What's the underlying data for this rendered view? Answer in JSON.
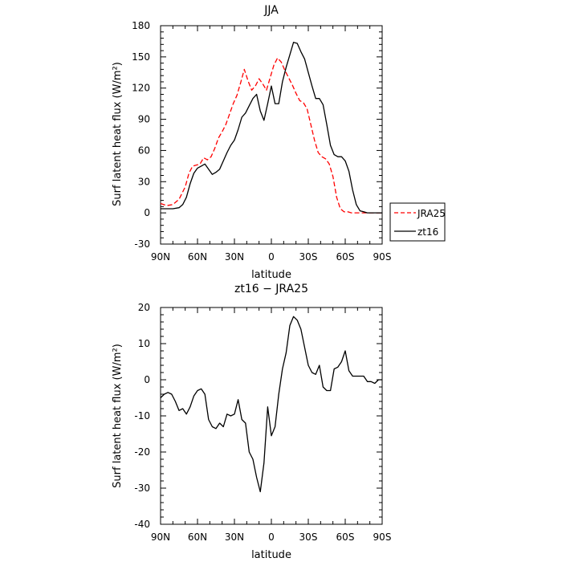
{
  "chart_data": [
    {
      "type": "line",
      "title": "JJA",
      "xlabel": "latitude",
      "ylabel": "Surf latent heat flux (W/m²)",
      "xlim": [
        90,
        -90
      ],
      "ylim": [
        -30,
        180
      ],
      "x_tick_values": [
        90,
        60,
        30,
        0,
        -30,
        -60,
        -90
      ],
      "x_tick_labels": [
        "90N",
        "60N",
        "30N",
        "0",
        "30S",
        "60S",
        "90S"
      ],
      "y_tick_values": [
        -30,
        0,
        30,
        60,
        90,
        120,
        150,
        180
      ],
      "y_tick_labels": [
        "-30",
        "0",
        "30",
        "60",
        "90",
        "120",
        "150",
        "180"
      ],
      "legend": "right",
      "series": [
        {
          "name": "JRA25",
          "color": "#ff0000",
          "dash": "dashed",
          "x": [
            90,
            85,
            80,
            75,
            70,
            67,
            64,
            61,
            58,
            55,
            52,
            49,
            46,
            43,
            40,
            37,
            34,
            31,
            28,
            25,
            22,
            19,
            16,
            13,
            10,
            7,
            4,
            1,
            -2,
            -5,
            -8,
            -11,
            -14,
            -17,
            -20,
            -23,
            -26,
            -29,
            -32,
            -35,
            -38,
            -41,
            -44,
            -47,
            -50,
            -53,
            -56,
            -59,
            -62,
            -65,
            -68,
            -71,
            -74,
            -77,
            -80,
            -85,
            -90
          ],
          "values": [
            9,
            7,
            8,
            13,
            25,
            38,
            45,
            46,
            47,
            53,
            51,
            54,
            62,
            72,
            78,
            85,
            95,
            105,
            113,
            125,
            138,
            127,
            118,
            122,
            129,
            124,
            118,
            130,
            142,
            149,
            145,
            137,
            130,
            123,
            115,
            108,
            106,
            100,
            85,
            70,
            58,
            54,
            52,
            47,
            35,
            15,
            4,
            1,
            1,
            0,
            0,
            0,
            0,
            0,
            0,
            0,
            0
          ]
        },
        {
          "name": "zt16",
          "color": "#000000",
          "dash": "solid",
          "x": [
            90,
            85,
            80,
            75,
            72,
            69,
            66,
            63,
            60,
            57,
            54,
            51,
            48,
            45,
            42,
            39,
            36,
            33,
            30,
            27,
            24,
            21,
            18,
            15,
            12,
            9,
            6,
            3,
            0,
            -3,
            -6,
            -9,
            -12,
            -15,
            -18,
            -21,
            -24,
            -27,
            -30,
            -33,
            -36,
            -39,
            -42,
            -45,
            -48,
            -51,
            -54,
            -57,
            -60,
            -63,
            -66,
            -69,
            -72,
            -75,
            -78,
            -81,
            -84,
            -87,
            -90
          ],
          "values": [
            4,
            4,
            4,
            5,
            8,
            15,
            28,
            38,
            43,
            45,
            47,
            42,
            37,
            39,
            42,
            50,
            58,
            65,
            70,
            80,
            92,
            96,
            103,
            110,
            114,
            98,
            89,
            105,
            122,
            105,
            105,
            126,
            140,
            152,
            164,
            163,
            155,
            148,
            135,
            122,
            110,
            110,
            104,
            85,
            65,
            56,
            54,
            54,
            50,
            40,
            22,
            8,
            2,
            1,
            0,
            0,
            0,
            0,
            0
          ]
        }
      ]
    },
    {
      "type": "line",
      "title": "zt16 − JRA25",
      "xlabel": "latitude",
      "ylabel": "Surf latent heat flux (W/m²)",
      "xlim": [
        90,
        -90
      ],
      "ylim": [
        -40,
        20
      ],
      "x_tick_values": [
        90,
        60,
        30,
        0,
        -30,
        -60,
        -90
      ],
      "x_tick_labels": [
        "90N",
        "60N",
        "30N",
        "0",
        "30S",
        "60S",
        "90S"
      ],
      "y_tick_values": [
        -40,
        -30,
        -20,
        -10,
        0,
        10,
        20
      ],
      "y_tick_labels": [
        "-40",
        "-30",
        "-20",
        "-10",
        "0",
        "10",
        "20"
      ],
      "series": [
        {
          "color": "#000000",
          "dash": "solid",
          "x": [
            90,
            87,
            84,
            81,
            78,
            75,
            72,
            69,
            66,
            63,
            60,
            57,
            54,
            51,
            48,
            45,
            42,
            39,
            36,
            33,
            30,
            27,
            24,
            21,
            18,
            15,
            12,
            9,
            6,
            3,
            0,
            -3,
            -6,
            -9,
            -12,
            -15,
            -18,
            -21,
            -24,
            -27,
            -30,
            -33,
            -36,
            -39,
            -42,
            -45,
            -48,
            -51,
            -54,
            -57,
            -60,
            -63,
            -66,
            -69,
            -72,
            -75,
            -78,
            -81,
            -84,
            -87,
            -90
          ],
          "values": [
            -5,
            -4,
            -3.5,
            -4,
            -6,
            -8.5,
            -8,
            -9.5,
            -7.5,
            -4.5,
            -3,
            -2.5,
            -4,
            -11,
            -13,
            -13.5,
            -12,
            -13,
            -9.5,
            -10,
            -9.5,
            -5.5,
            -11,
            -12,
            -20,
            -22,
            -27,
            -31,
            -23,
            -7.5,
            -15.5,
            -13,
            -4,
            3,
            7.5,
            15,
            17.5,
            16.5,
            14,
            9,
            4,
            2,
            1.5,
            4,
            -2,
            -3,
            -3,
            3,
            3.5,
            5,
            8,
            2.5,
            1,
            1,
            1,
            1,
            -0.5,
            -0.5,
            -1,
            0,
            0
          ]
        }
      ]
    }
  ]
}
